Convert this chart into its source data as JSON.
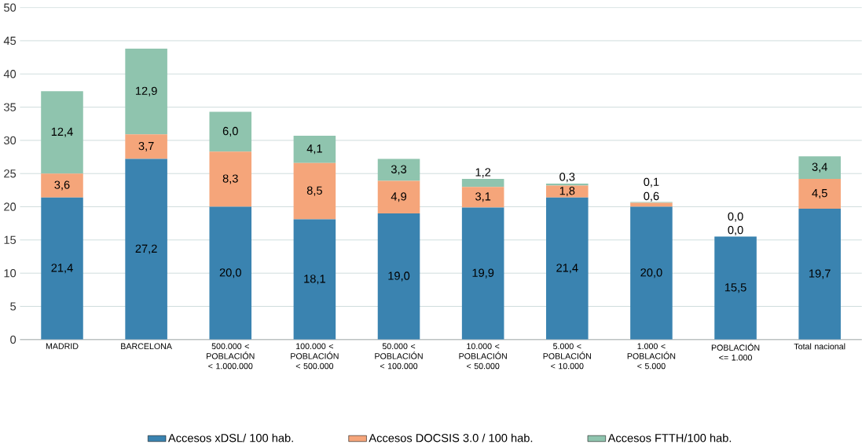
{
  "chart_data": {
    "type": "bar",
    "stacked": true,
    "categories": [
      "MADRID",
      "BARCELONA",
      "500.000 < POBLACIÓN < 1.000.000",
      "100.000 < POBLACIÓN < 500.000",
      "50.000 < POBLACIÓN < 100.000",
      "10.000 < POBLACIÓN < 50.000",
      "5.000 < POBLACIÓN < 10.000",
      "1.000 < POBLACIÓN < 5.000",
      "POBLACIÓN <= 1.000",
      "Total nacional"
    ],
    "series": [
      {
        "name": "Accesos xDSL/ 100 hab.",
        "color": "#3a83b0",
        "values": [
          21.4,
          27.2,
          20.0,
          18.1,
          19.0,
          19.9,
          21.4,
          20.0,
          15.5,
          19.7
        ],
        "value_labels": [
          "21,4",
          "27,2",
          "20,0",
          "18,1",
          "19,0",
          "19,9",
          "21,4",
          "20,0",
          "15,5",
          "19,7"
        ]
      },
      {
        "name": "Accesos DOCSIS 3.0 / 100 hab.",
        "color": "#f5a57a",
        "values": [
          3.6,
          3.7,
          8.3,
          8.5,
          4.9,
          3.1,
          1.8,
          0.6,
          0.0,
          4.5
        ],
        "value_labels": [
          "3,6",
          "3,7",
          "8,3",
          "8,5",
          "4,9",
          "3,1",
          "1,8",
          "0,6",
          "0,0",
          "4,5"
        ]
      },
      {
        "name": "Accesos FTTH/100 hab.",
        "color": "#8fc4ae",
        "values": [
          12.4,
          12.9,
          6.0,
          4.1,
          3.3,
          1.2,
          0.3,
          0.1,
          0.0,
          3.4
        ],
        "value_labels": [
          "12,4",
          "12,9",
          "6,0",
          "4,1",
          "3,3",
          "1,2",
          "0,3",
          "0,1",
          "0,0",
          "3,4"
        ]
      }
    ],
    "ylim": [
      0,
      50
    ],
    "yticks": [
      0,
      5,
      10,
      15,
      20,
      25,
      30,
      35,
      40,
      45,
      50
    ],
    "grid": "y",
    "legend": "bottom"
  }
}
